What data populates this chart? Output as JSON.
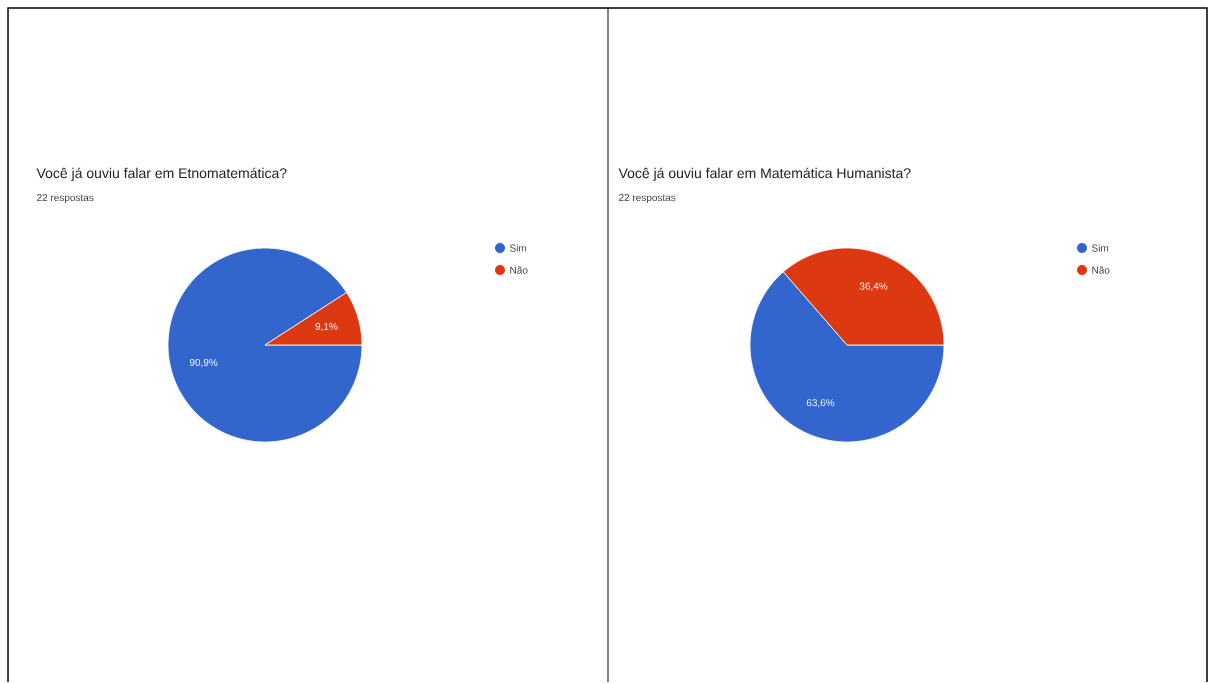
{
  "chart_data": [
    {
      "type": "pie",
      "title": "Você já ouviu falar em Etnomatemática?",
      "subtitle": "22 respostas",
      "categories": [
        "Sim",
        "Não"
      ],
      "values": [
        90.9,
        9.1
      ],
      "colors": [
        "#3366cc",
        "#dc3912"
      ],
      "value_labels": [
        "90,9%",
        "9,1%"
      ],
      "legend": "right"
    },
    {
      "type": "pie",
      "title": "Você já ouviu falar em Matemática Humanista?",
      "subtitle": "22 respostas",
      "categories": [
        "Sim",
        "Não"
      ],
      "values": [
        63.6,
        36.4
      ],
      "colors": [
        "#3366cc",
        "#dc3912"
      ],
      "value_labels": [
        "63,6%",
        "36,4%"
      ],
      "legend": "right"
    }
  ]
}
